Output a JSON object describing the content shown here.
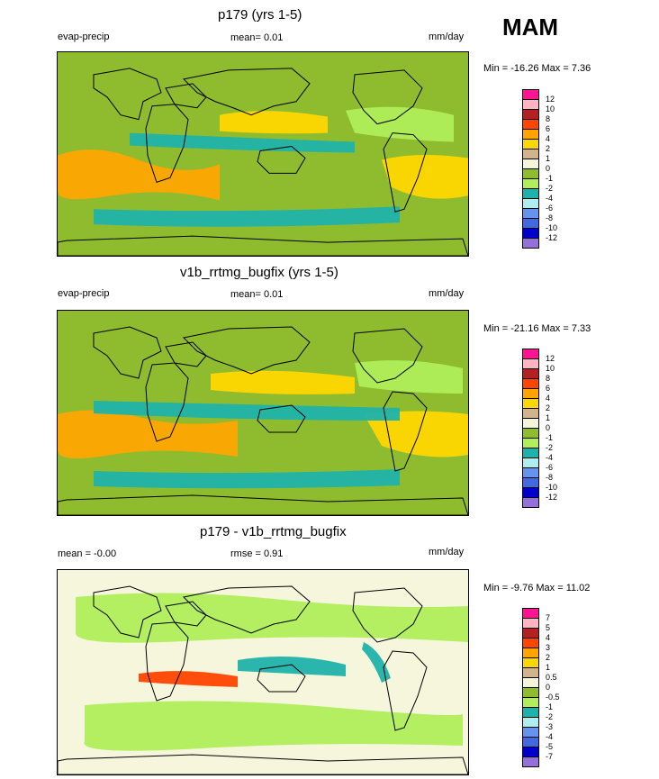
{
  "season": "MAM",
  "panels": [
    {
      "title": "p179 (yrs 1-5)",
      "left": "evap-precip",
      "center": "mean=  0.01",
      "right": "mm/day",
      "minmax": "Min = -16.26 Max =   7.36",
      "levels": [
        "12",
        "10",
        "8",
        "6",
        "4",
        "2",
        "1",
        "0",
        "-1",
        "-2",
        "-4",
        "-6",
        "-8",
        "-10",
        "-12"
      ],
      "colors": [
        "#ff1493",
        "#ffb6c1",
        "#b22222",
        "#ff4500",
        "#ffa500",
        "#ffd700",
        "#d2b48c",
        "#f5f5dc",
        "#8fbc2f",
        "#b0ee5a",
        "#20b2aa",
        "#afeeee",
        "#6495ed",
        "#4169e1",
        "#0000cd",
        "#9370db"
      ]
    },
    {
      "title": "v1b_rrtmg_bugfix (yrs 1-5)",
      "left": "evap-precip",
      "center": "mean=  0.01",
      "right": "mm/day",
      "minmax": "Min = -21.16 Max =   7.33",
      "levels": [
        "12",
        "10",
        "8",
        "6",
        "4",
        "2",
        "1",
        "0",
        "-1",
        "-2",
        "-4",
        "-6",
        "-8",
        "-10",
        "-12"
      ],
      "colors": [
        "#ff1493",
        "#ffb6c1",
        "#b22222",
        "#ff4500",
        "#ffa500",
        "#ffd700",
        "#d2b48c",
        "#f5f5dc",
        "#8fbc2f",
        "#b0ee5a",
        "#20b2aa",
        "#afeeee",
        "#6495ed",
        "#4169e1",
        "#0000cd",
        "#9370db"
      ]
    },
    {
      "title": "p179 - v1b_rrtmg_bugfix",
      "left": "mean =  -0.00",
      "center": "rmse =   0.91",
      "right": "mm/day",
      "minmax": "Min =  -9.76 Max =  11.02",
      "levels": [
        "7",
        "5",
        "4",
        "3",
        "2",
        "1",
        "0.5",
        "0",
        "-0.5",
        "-1",
        "-2",
        "-3",
        "-4",
        "-5",
        "-7"
      ],
      "colors": [
        "#ff1493",
        "#ffb6c1",
        "#b22222",
        "#ff4500",
        "#ffa500",
        "#ffd700",
        "#d2b48c",
        "#f5f5dc",
        "#8fbc2f",
        "#b0ee5a",
        "#20b2aa",
        "#afeeee",
        "#6495ed",
        "#4169e1",
        "#0000cd",
        "#9370db"
      ]
    }
  ]
}
